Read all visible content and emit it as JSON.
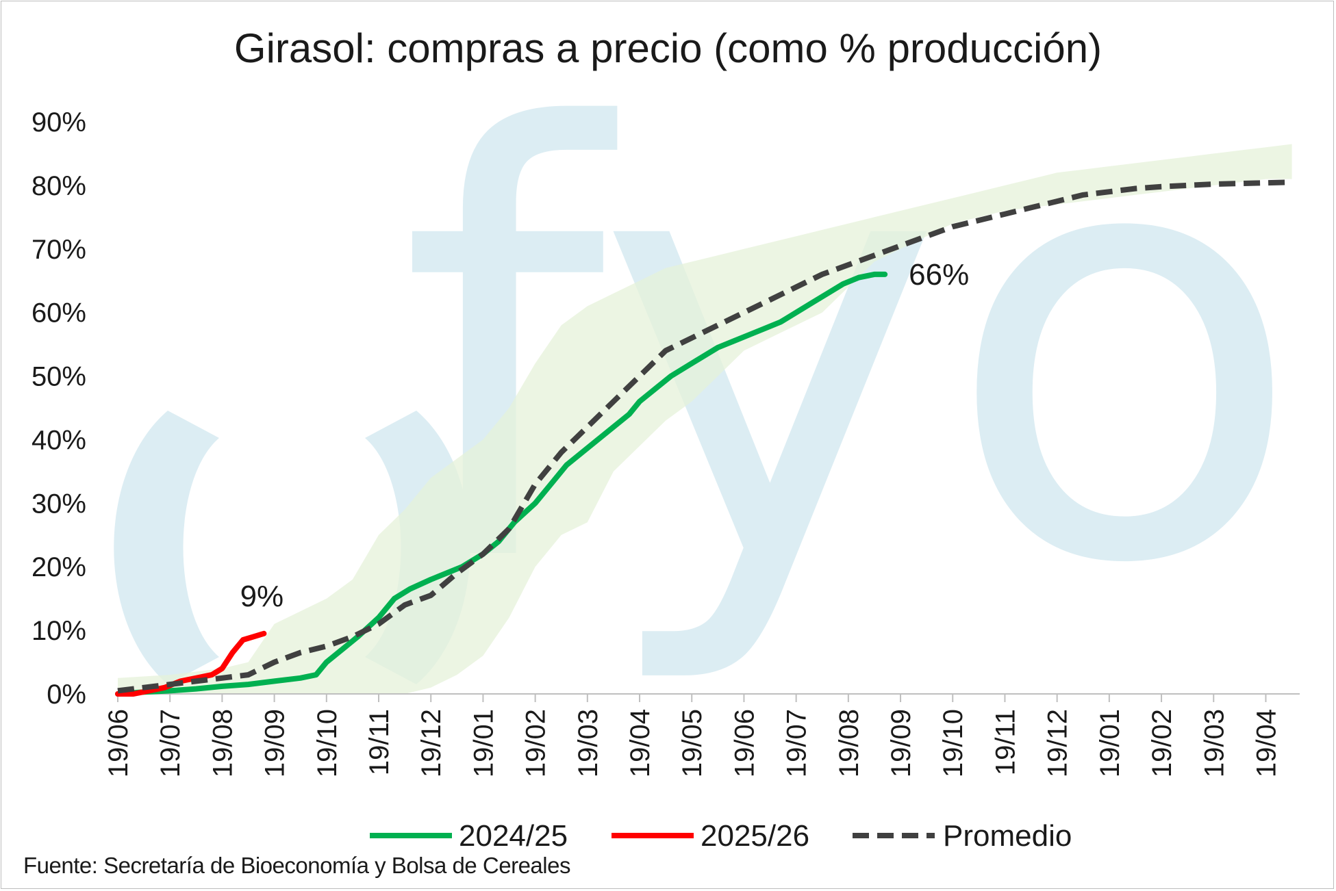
{
  "chart_data": {
    "type": "line",
    "title": "Girasol: compras a precio (como % producción)",
    "source": "Fuente: Secretaría de Bioeconomía y Bolsa de Cereales",
    "watermark": "fyo",
    "xlabel": "",
    "ylabel": "",
    "ylim": [
      0,
      90
    ],
    "y_ticks": [
      "0%",
      "10%",
      "20%",
      "30%",
      "40%",
      "50%",
      "60%",
      "70%",
      "80%",
      "90%"
    ],
    "x_tick_labels": [
      "19/06",
      "19/07",
      "19/08",
      "19/09",
      "19/10",
      "19/11",
      "19/12",
      "19/01",
      "19/02",
      "19/03",
      "19/04",
      "19/05",
      "19/06",
      "19/07",
      "19/08",
      "19/09",
      "19/10",
      "19/11",
      "19/12",
      "19/01",
      "19/02",
      "19/03",
      "19/04"
    ],
    "x_range_months": [
      0,
      22.5
    ],
    "grid": false,
    "legend_position": "bottom",
    "colors": {
      "2024/25": "#00b050",
      "2025/26": "#ff0000",
      "Promedio": "#404040",
      "band": "#e6f1da",
      "watermark": "#dcedf3"
    },
    "series": [
      {
        "name": "2024/25",
        "style": "solid",
        "x": [
          0,
          0.5,
          1,
          1.5,
          2,
          2.5,
          3,
          3.5,
          3.8,
          4,
          4.3,
          4.6,
          5,
          5.3,
          5.6,
          6,
          6.3,
          6.6,
          7,
          7.3,
          7.6,
          8,
          8.3,
          8.6,
          8.9,
          9.2,
          9.5,
          9.8,
          10,
          10.3,
          10.6,
          10.9,
          11.2,
          11.5,
          11.8,
          12.1,
          12.4,
          12.7,
          13,
          13.3,
          13.6,
          13.9,
          14.2,
          14.5,
          14.7
        ],
        "values": [
          0,
          0.3,
          0.5,
          0.8,
          1.2,
          1.5,
          2,
          2.5,
          3,
          5,
          7,
          9,
          12,
          15,
          16.5,
          18,
          19,
          20,
          22,
          24,
          27,
          30,
          33,
          36,
          38,
          40,
          42,
          44,
          46,
          48,
          50,
          51.5,
          53,
          54.5,
          55.5,
          56.5,
          57.5,
          58.5,
          60,
          61.5,
          63,
          64.5,
          65.5,
          66,
          66
        ],
        "end_label": "66%"
      },
      {
        "name": "2025/26",
        "style": "solid",
        "x": [
          0,
          0.3,
          0.6,
          0.9,
          1.2,
          1.5,
          1.8,
          2,
          2.2,
          2.4,
          2.6,
          2.8
        ],
        "values": [
          0,
          0,
          0.5,
          1,
          2,
          2.5,
          3,
          4,
          6.5,
          8.5,
          9,
          9.5
        ],
        "end_label": "9%"
      },
      {
        "name": "Promedio",
        "style": "dashed",
        "x": [
          0,
          0.5,
          1,
          1.5,
          2,
          2.5,
          3,
          3.5,
          4,
          4.5,
          5,
          5.5,
          6,
          6.5,
          7,
          7.5,
          8,
          8.5,
          9,
          9.5,
          10,
          10.5,
          11,
          11.5,
          12,
          12.5,
          13,
          13.5,
          14,
          14.5,
          15,
          15.5,
          16,
          16.5,
          17,
          17.5,
          18,
          18.5,
          19,
          19.5,
          20,
          20.5,
          21,
          21.5,
          22,
          22.5
        ],
        "values": [
          0.5,
          1,
          1.5,
          2,
          2.5,
          3,
          5,
          6.5,
          7.5,
          9,
          11,
          14,
          15.5,
          19,
          22,
          26,
          33,
          38,
          42,
          46,
          50,
          54,
          56,
          58,
          60,
          62,
          64,
          66,
          67.5,
          69,
          70.5,
          72,
          73.5,
          74.5,
          75.5,
          76.5,
          77.5,
          78.5,
          79,
          79.5,
          79.8,
          80,
          80.2,
          80.3,
          80.4,
          80.5
        ]
      },
      {
        "name": "",
        "style": "band",
        "x": [
          0,
          1,
          2,
          2.5,
          3,
          3.5,
          4,
          4.5,
          5,
          5.5,
          6,
          6.5,
          7,
          7.5,
          8,
          8.5,
          9,
          9.5,
          10,
          10.5,
          11,
          11.5,
          12,
          12.5,
          13,
          13.5,
          14,
          14.5,
          15,
          15.5,
          16,
          16.5,
          17,
          17.5,
          18,
          18.5,
          19,
          19.5,
          20,
          20.5,
          21,
          21.5,
          22,
          22.5
        ],
        "upper": [
          2.5,
          3,
          4,
          5,
          11,
          13,
          15,
          18,
          25,
          29,
          34,
          37,
          40,
          45,
          52,
          58,
          61,
          63,
          65,
          67,
          68,
          69,
          70,
          71,
          72,
          73,
          74,
          75,
          76,
          77,
          78,
          79,
          80,
          81,
          82,
          82.5,
          83,
          83.5,
          84,
          84.5,
          85,
          85.5,
          86,
          86.5
        ],
        "lower": [
          0,
          0,
          0,
          0,
          0,
          0,
          0,
          0,
          0,
          0,
          1,
          3,
          6,
          12,
          20,
          25,
          27,
          35,
          39,
          43,
          46,
          50,
          54,
          56,
          58,
          60,
          64,
          68,
          70,
          72,
          74,
          75,
          76,
          76.5,
          77,
          77.5,
          78,
          78.5,
          79,
          79.5,
          80,
          80.5,
          81,
          81
        ]
      }
    ]
  }
}
